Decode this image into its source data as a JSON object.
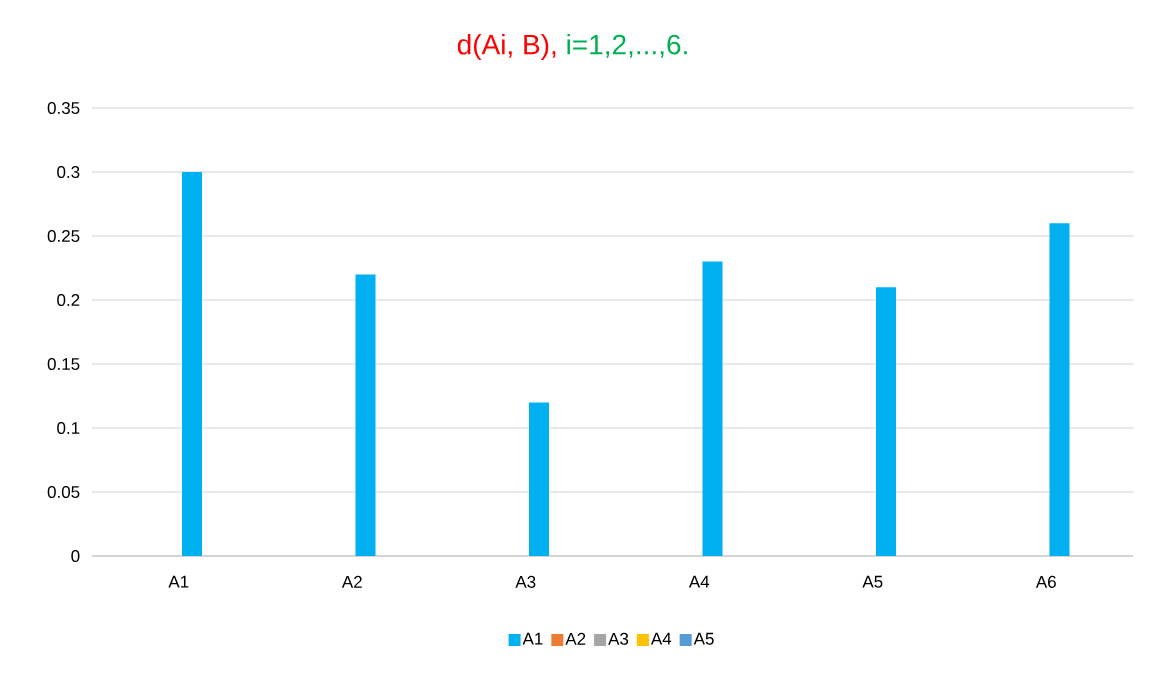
{
  "chart_data": {
    "type": "bar",
    "title": "d(Ai, B),",
    "subtitle": "i=1,2,...,6.",
    "categories": [
      "A1",
      "A2",
      "A3",
      "A4",
      "A5",
      "A6"
    ],
    "series": [
      {
        "name": "A1",
        "color": "#00b0f0",
        "values": [
          0.3,
          0.22,
          0.12,
          0.23,
          0.21,
          0.26
        ]
      },
      {
        "name": "A2",
        "color": "#ed7d31",
        "values": [
          null,
          null,
          null,
          null,
          null,
          null
        ]
      },
      {
        "name": "A3",
        "color": "#a5a5a5",
        "values": [
          null,
          null,
          null,
          null,
          null,
          null
        ]
      },
      {
        "name": "A4",
        "color": "#ffc000",
        "values": [
          null,
          null,
          null,
          null,
          null,
          null
        ]
      },
      {
        "name": "A5",
        "color": "#5b9bd5",
        "values": [
          null,
          null,
          null,
          null,
          null,
          null
        ]
      }
    ],
    "ylim": [
      0,
      0.35
    ],
    "yticks": [
      0,
      0.05,
      0.1,
      0.15,
      0.2,
      0.25,
      0.3,
      0.35
    ],
    "grid": "y",
    "legend": "bottom"
  }
}
